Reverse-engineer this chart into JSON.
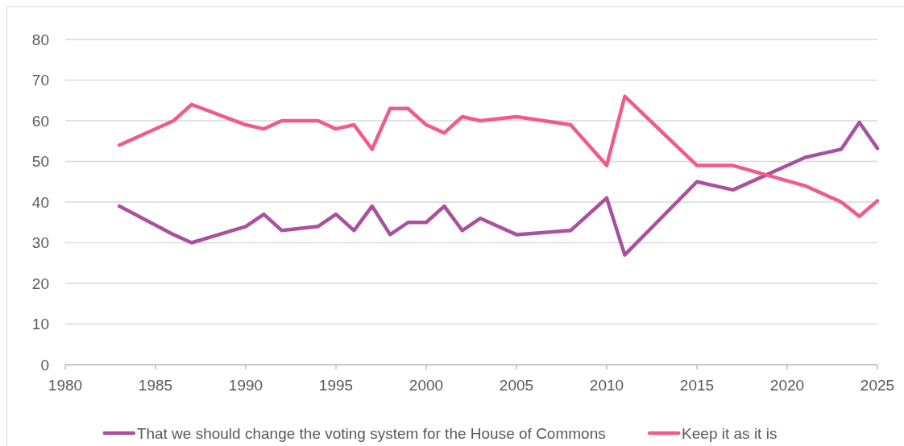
{
  "chart_data": {
    "type": "line",
    "x": [
      1983,
      1986,
      1987,
      1990,
      1991,
      1992,
      1994,
      1995,
      1996,
      1997,
      1998,
      1999,
      2000,
      2001,
      2002,
      2003,
      2005,
      2008,
      2010,
      2011,
      2015,
      2017,
      2021,
      2023,
      2024,
      2025
    ],
    "series": [
      {
        "name": "That we should change the voting system for the House of Commons",
        "color": "#a9509f",
        "values": [
          39,
          32,
          30,
          34,
          37,
          33,
          34,
          37,
          33,
          39,
          32,
          35,
          35,
          39,
          33,
          36,
          32,
          33,
          41,
          27,
          45,
          43,
          51,
          53,
          59.6,
          53.2
        ]
      },
      {
        "name": "Keep it as it is",
        "color": "#f05a8c",
        "values": [
          54,
          60,
          64,
          59,
          58,
          60,
          60,
          58,
          59,
          53,
          63,
          63,
          59,
          57,
          61,
          60,
          61,
          59,
          49,
          66,
          49,
          49,
          44,
          40,
          36.5,
          40.3
        ]
      }
    ],
    "xlim": [
      1980,
      2025
    ],
    "xticks": [
      1980,
      1985,
      1990,
      1995,
      2000,
      2005,
      2010,
      2015,
      2020,
      2025
    ],
    "ylim": [
      0,
      80
    ],
    "yticks": [
      0,
      10,
      20,
      30,
      40,
      50,
      60,
      70,
      80
    ],
    "grid": "y",
    "legend": "bottom",
    "marker": "none",
    "line_style": "solid"
  }
}
